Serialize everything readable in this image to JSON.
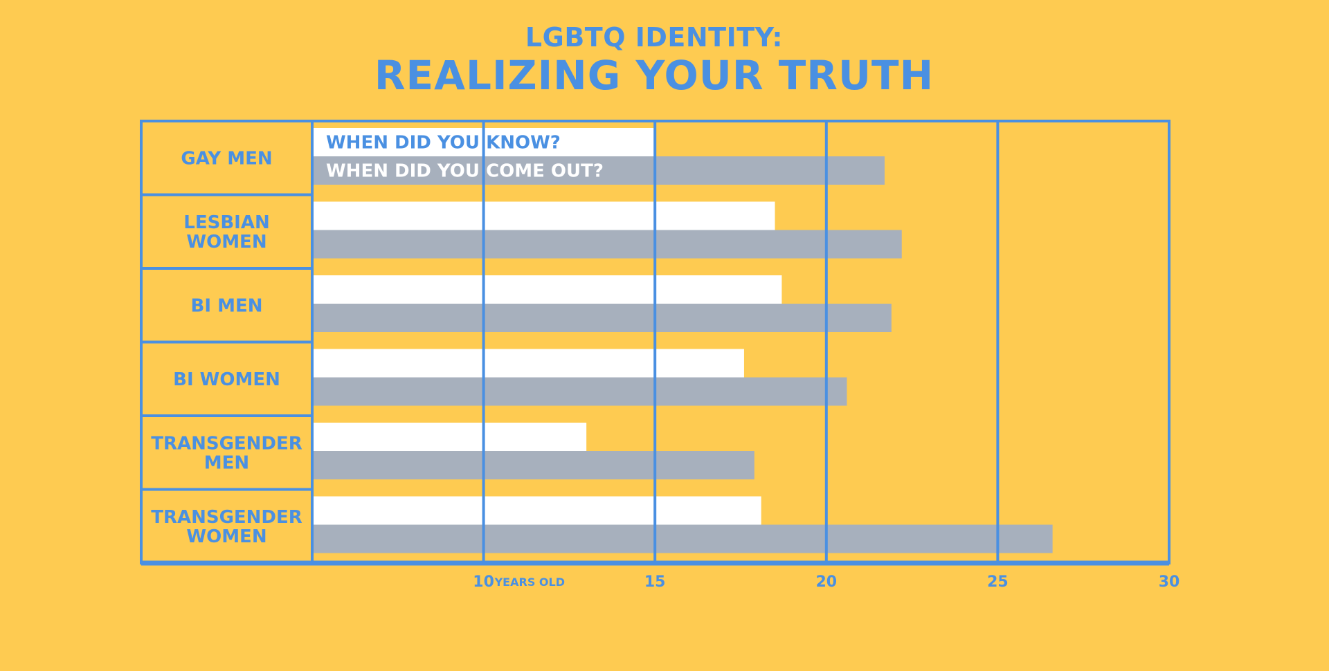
{
  "header": {
    "subtitle": "LGBTQ IDENTITY:",
    "title": "REALIZING YOUR TRUTH"
  },
  "colors": {
    "background": "#FECB51",
    "accent": "#4A90E2",
    "know_bar": "#FFFFFF",
    "out_bar": "#A7B0BD"
  },
  "chart_data": {
    "type": "bar",
    "orientation": "horizontal",
    "categories": [
      [
        "GAY MEN"
      ],
      [
        "LESBIAN",
        "WOMEN"
      ],
      [
        "BI MEN"
      ],
      [
        "BI WOMEN"
      ],
      [
        "TRANSGENDER",
        "MEN"
      ],
      [
        "TRANSGENDER",
        "WOMEN"
      ]
    ],
    "series": [
      {
        "name": "WHEN DID YOU KNOW?",
        "color": "#FFFFFF",
        "values": [
          15,
          18.5,
          18.7,
          17.6,
          13,
          18.1
        ]
      },
      {
        "name": "WHEN DID YOU COME OUT?",
        "color": "#A7B0BD",
        "values": [
          21.7,
          22.2,
          21.9,
          20.6,
          17.9,
          26.6
        ]
      }
    ],
    "xlim": [
      5,
      30
    ],
    "ticks": [
      10,
      15,
      20,
      25,
      30
    ],
    "tick_unit": "YEARS OLD",
    "grid": true
  }
}
